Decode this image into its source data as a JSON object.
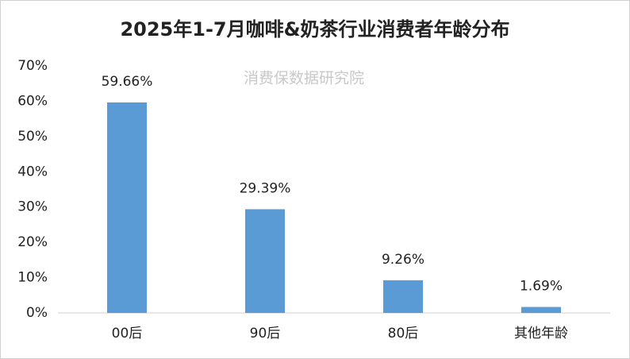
{
  "chart_data": {
    "type": "bar",
    "title": "2025年1-7月咖啡&奶茶行业消费者年龄分布",
    "annotation": "消费保数据研究院",
    "categories": [
      "00后",
      "90后",
      "80后",
      "其他年龄"
    ],
    "values": [
      59.66,
      29.39,
      9.26,
      1.69
    ],
    "value_labels": [
      "59.66%",
      "29.39%",
      "9.26%",
      "1.69%"
    ],
    "color": "#5b9bd5",
    "ylim": [
      0,
      70
    ],
    "yticks": [
      {
        "value": 0,
        "label": "0%"
      },
      {
        "value": 10,
        "label": "10%"
      },
      {
        "value": 20,
        "label": "20%"
      },
      {
        "value": 30,
        "label": "30%"
      },
      {
        "value": 40,
        "label": "40%"
      },
      {
        "value": 50,
        "label": "50%"
      },
      {
        "value": 60,
        "label": "60%"
      },
      {
        "value": 70,
        "label": "70%"
      }
    ],
    "grid": false
  }
}
